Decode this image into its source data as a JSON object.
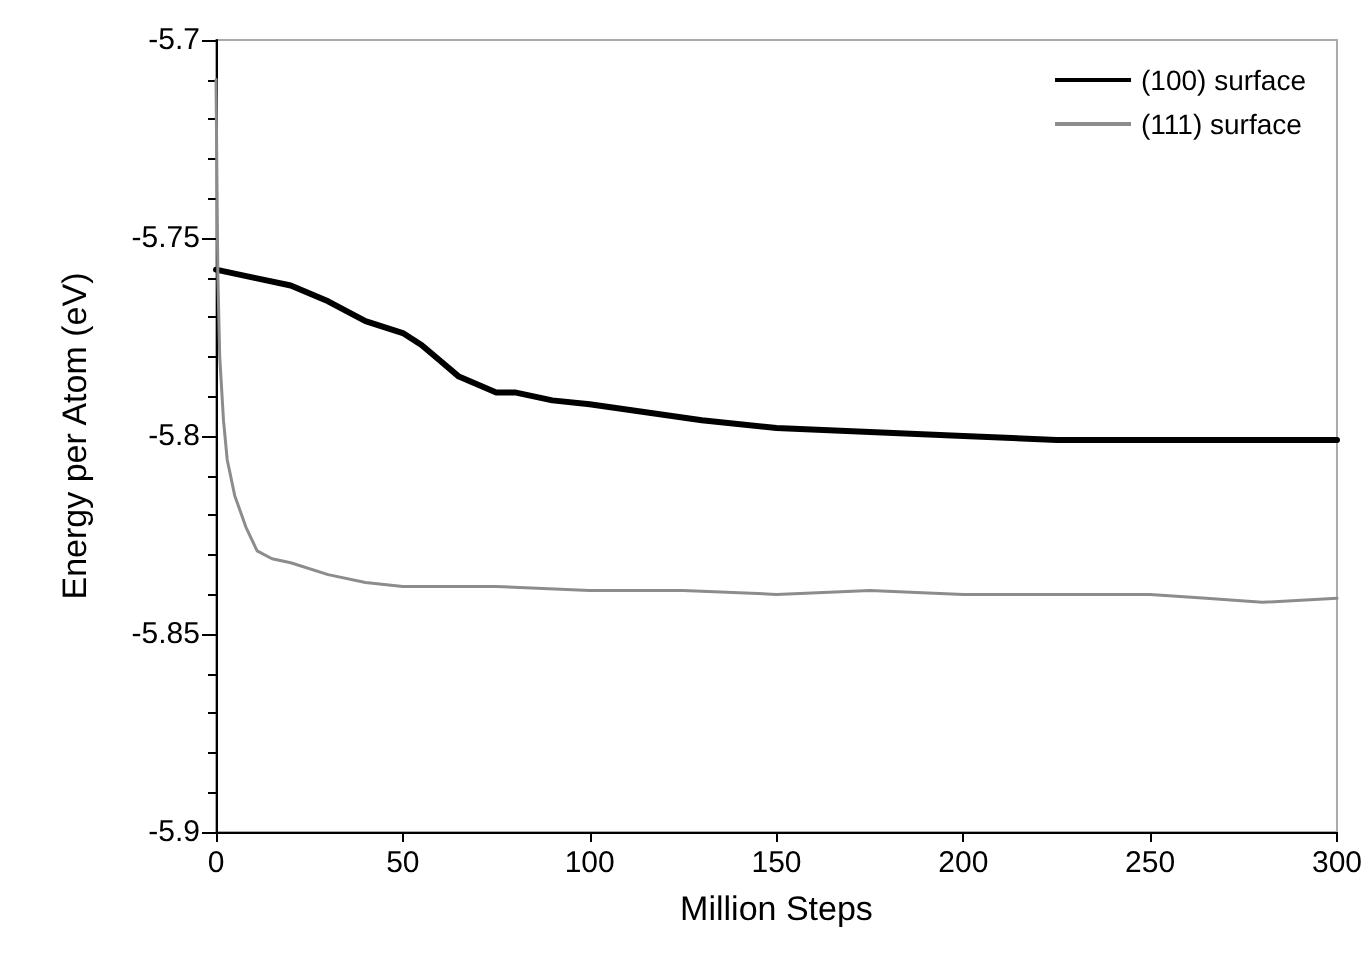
{
  "chart_data": {
    "type": "line",
    "xlabel": "Million Steps",
    "ylabel": "Energy per Atom (eV)",
    "xlim": [
      0,
      300
    ],
    "xticks": [
      0,
      50,
      100,
      150,
      200,
      250,
      300
    ],
    "ylim": [
      -5.9,
      -5.7
    ],
    "yticks": [
      -5.9,
      -5.85,
      -5.8,
      -5.75,
      -5.7
    ],
    "grid": false,
    "legend": "top right",
    "marker": "none",
    "series": [
      {
        "name": "(100) surface",
        "color": "#000000",
        "line_style": "solid",
        "x": [
          0,
          5,
          10,
          20,
          30,
          40,
          50,
          55,
          60,
          65,
          70,
          75,
          80,
          90,
          100,
          115,
          130,
          150,
          175,
          200,
          225,
          250,
          275,
          300
        ],
        "values": [
          -5.758,
          -5.759,
          -5.76,
          -5.762,
          -5.766,
          -5.771,
          -5.774,
          -5.777,
          -5.781,
          -5.785,
          -5.787,
          -5.789,
          -5.789,
          -5.791,
          -5.792,
          -5.794,
          -5.796,
          -5.798,
          -5.799,
          -5.8,
          -5.801,
          -5.801,
          -5.801,
          -5.801
        ]
      },
      {
        "name": "(111) surface",
        "color": "#8c8c8c",
        "line_style": "solid",
        "x": [
          0,
          0.5,
          1,
          2,
          3,
          5,
          8,
          11,
          15,
          20,
          30,
          40,
          50,
          75,
          100,
          125,
          150,
          175,
          200,
          225,
          250,
          265,
          280,
          300
        ],
        "values": [
          -5.71,
          -5.76,
          -5.78,
          -5.796,
          -5.806,
          -5.815,
          -5.823,
          -5.829,
          -5.831,
          -5.832,
          -5.835,
          -5.837,
          -5.838,
          -5.838,
          -5.839,
          -5.839,
          -5.84,
          -5.839,
          -5.84,
          -5.84,
          -5.84,
          -5.841,
          -5.842,
          -5.841
        ]
      }
    ]
  }
}
